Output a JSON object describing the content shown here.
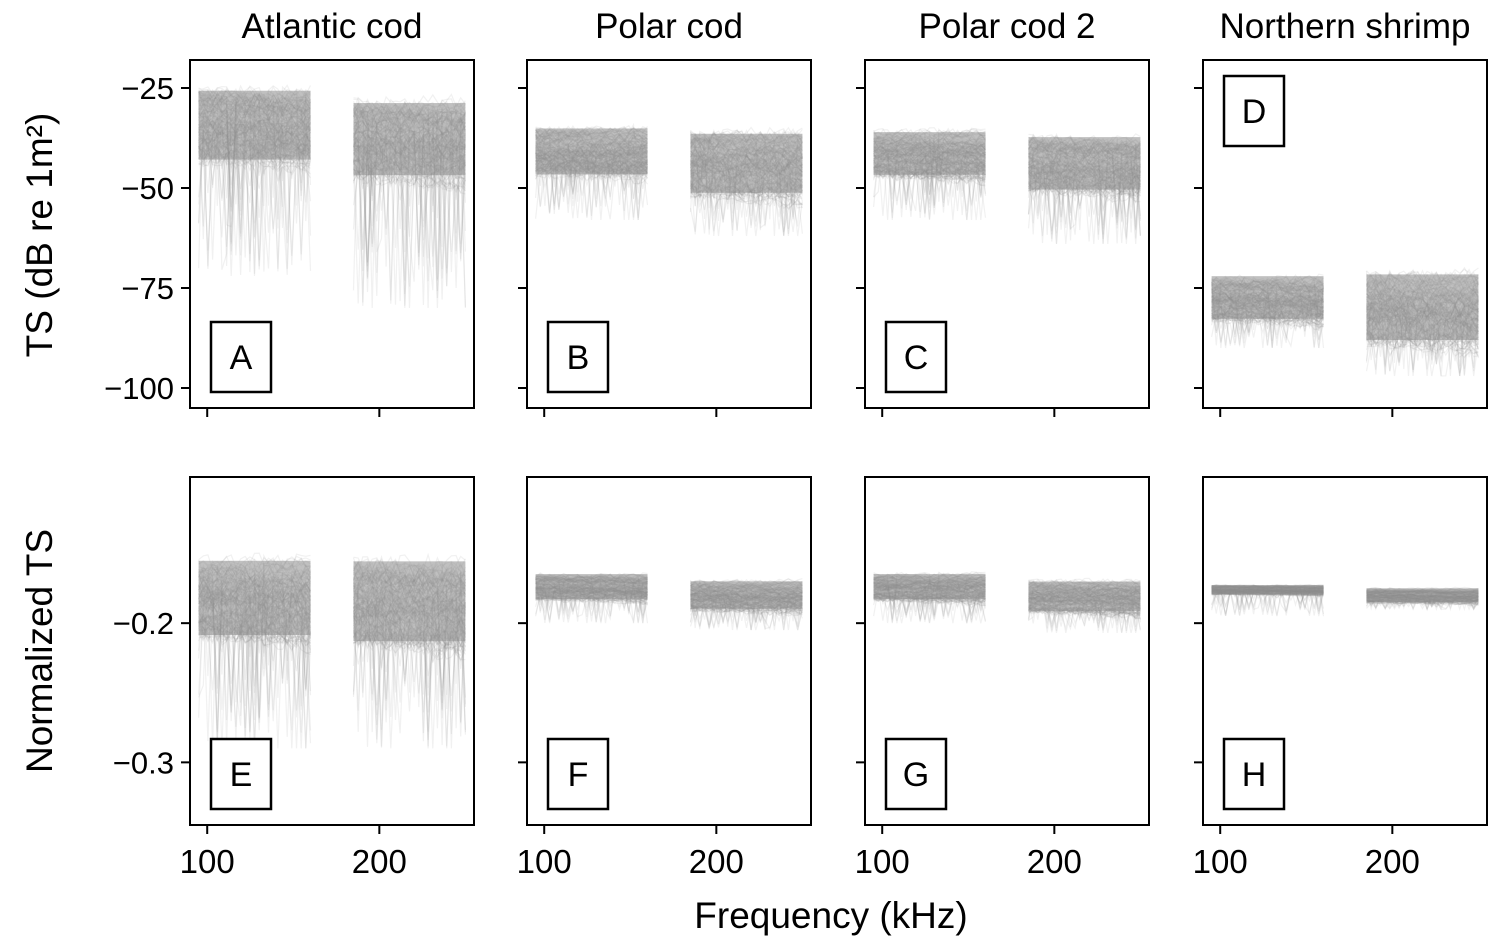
{
  "figure": {
    "xlabel": "Frequency (kHz)",
    "row_ylabels": [
      "TS (dB re 1m²)",
      "Normalized TS"
    ],
    "colors": {
      "trace": "#8c8c8c",
      "axes": "#000000",
      "label_box": "#000000"
    }
  },
  "chart_data": [
    {
      "type": "line",
      "title": "Atlantic cod",
      "panel_label": "A",
      "xticks": [
        100,
        200
      ],
      "xlim": [
        90,
        255
      ],
      "yticks": [
        -25,
        -50,
        -75,
        -100
      ],
      "ylim": [
        -105,
        -18
      ],
      "bands": [
        {
          "x": [
            95,
            160
          ],
          "core": [
            -24,
            -45
          ],
          "min": -72
        },
        {
          "x": [
            185,
            250
          ],
          "core": [
            -27,
            -49
          ],
          "min": -80
        }
      ]
    },
    {
      "type": "line",
      "title": "Polar cod",
      "panel_label": "B",
      "xticks": [
        100,
        200
      ],
      "xlim": [
        90,
        255
      ],
      "yticks": [
        -25,
        -50,
        -75,
        -100
      ],
      "ylim": [
        -105,
        -18
      ],
      "bands": [
        {
          "x": [
            95,
            160
          ],
          "core": [
            -34,
            -48
          ],
          "min": -58
        },
        {
          "x": [
            185,
            250
          ],
          "core": [
            -35,
            -53
          ],
          "min": -62
        }
      ]
    },
    {
      "type": "line",
      "title": "Polar cod 2",
      "panel_label": "C",
      "xticks": [
        100,
        200
      ],
      "xlim": [
        90,
        255
      ],
      "yticks": [
        -25,
        -50,
        -75,
        -100
      ],
      "ylim": [
        -105,
        -18
      ],
      "bands": [
        {
          "x": [
            95,
            160
          ],
          "core": [
            -35,
            -48
          ],
          "min": -58
        },
        {
          "x": [
            185,
            250
          ],
          "core": [
            -36,
            -52
          ],
          "min": -64
        }
      ]
    },
    {
      "type": "line",
      "title": "Northern shrimp",
      "panel_label": "D",
      "xticks": [
        100,
        200
      ],
      "xlim": [
        90,
        255
      ],
      "yticks": [
        -25,
        -50,
        -75,
        -100
      ],
      "ylim": [
        -105,
        -18
      ],
      "bands": [
        {
          "x": [
            95,
            160
          ],
          "core": [
            -71,
            -84
          ],
          "min": -90
        },
        {
          "x": [
            185,
            250
          ],
          "core": [
            -70,
            -90
          ],
          "min": -97
        }
      ]
    },
    {
      "type": "line",
      "title": "",
      "panel_label": "E",
      "xticks": [
        100,
        200
      ],
      "xlim": [
        90,
        255
      ],
      "yticks": [
        -0.2,
        -0.3
      ],
      "ylim": [
        -0.345,
        -0.095
      ],
      "bands": [
        {
          "x": [
            95,
            160
          ],
          "core": [
            -0.15,
            -0.215
          ],
          "min": -0.29
        },
        {
          "x": [
            185,
            250
          ],
          "core": [
            -0.15,
            -0.22
          ],
          "min": -0.29
        }
      ]
    },
    {
      "type": "line",
      "title": "",
      "panel_label": "F",
      "xticks": [
        100,
        200
      ],
      "xlim": [
        90,
        255
      ],
      "yticks": [
        -0.2,
        -0.3
      ],
      "ylim": [
        -0.345,
        -0.095
      ],
      "bands": [
        {
          "x": [
            95,
            160
          ],
          "core": [
            -0.163,
            -0.185
          ],
          "min": -0.2
        },
        {
          "x": [
            185,
            250
          ],
          "core": [
            -0.168,
            -0.192
          ],
          "min": -0.205
        }
      ]
    },
    {
      "type": "line",
      "title": "",
      "panel_label": "G",
      "xticks": [
        100,
        200
      ],
      "xlim": [
        90,
        255
      ],
      "yticks": [
        -0.2,
        -0.3
      ],
      "ylim": [
        -0.345,
        -0.095
      ],
      "bands": [
        {
          "x": [
            95,
            160
          ],
          "core": [
            -0.163,
            -0.185
          ],
          "min": -0.2
        },
        {
          "x": [
            185,
            250
          ],
          "core": [
            -0.168,
            -0.194
          ],
          "min": -0.207
        }
      ]
    },
    {
      "type": "line",
      "title": "",
      "panel_label": "H",
      "xticks": [
        100,
        200
      ],
      "xlim": [
        90,
        255
      ],
      "yticks": [
        -0.2,
        -0.3
      ],
      "ylim": [
        -0.345,
        -0.095
      ],
      "bands": [
        {
          "x": [
            95,
            160
          ],
          "core": [
            -0.172,
            -0.18
          ],
          "min": -0.195
        },
        {
          "x": [
            185,
            250
          ],
          "core": [
            -0.174,
            -0.186
          ],
          "min": -0.19
        }
      ]
    }
  ]
}
